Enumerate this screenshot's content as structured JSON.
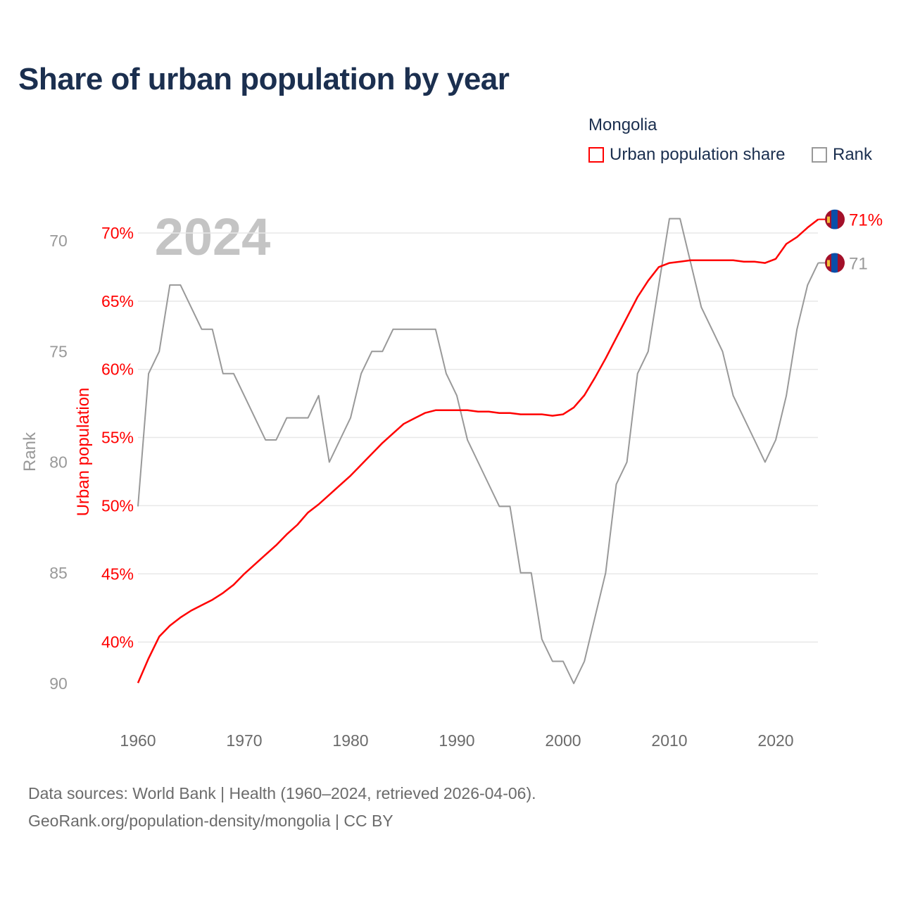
{
  "title": "Share of urban population by year",
  "legend": {
    "title": "Mongolia",
    "items": [
      {
        "label": "Urban population share",
        "color": "#ff0000"
      },
      {
        "label": "Rank",
        "color": "#999999"
      }
    ]
  },
  "footer": {
    "line1": "Data sources: World Bank | Health (1960–2024, retrieved 2026-04-06).",
    "line2": "GeoRank.org/population-density/mongolia | CC BY"
  },
  "chart_data": {
    "type": "line",
    "title": "Share of urban population by year",
    "year_watermark": "2024",
    "xlabel": "",
    "x_ticks": [
      "1960",
      "1970",
      "1980",
      "1990",
      "2000",
      "2010",
      "2020"
    ],
    "xlim": [
      1960,
      2024
    ],
    "y_left": {
      "label": "Urban population",
      "ticks": [
        "40%",
        "45%",
        "50%",
        "55%",
        "60%",
        "65%",
        "70%"
      ],
      "tick_values": [
        40,
        45,
        50,
        55,
        60,
        65,
        70
      ],
      "color": "#ff0000"
    },
    "y_rank": {
      "label": "Rank",
      "ticks": [
        "70",
        "75",
        "80",
        "85",
        "90"
      ],
      "tick_values": [
        70,
        75,
        80,
        85,
        90
      ],
      "inverted": true,
      "color": "#999999"
    },
    "grid": true,
    "legend_position": "top-right",
    "x": [
      1960,
      1961,
      1962,
      1963,
      1964,
      1965,
      1966,
      1967,
      1968,
      1969,
      1970,
      1971,
      1972,
      1973,
      1974,
      1975,
      1976,
      1977,
      1978,
      1979,
      1980,
      1981,
      1982,
      1983,
      1984,
      1985,
      1986,
      1987,
      1988,
      1989,
      1990,
      1991,
      1992,
      1993,
      1994,
      1995,
      1996,
      1997,
      1998,
      1999,
      2000,
      2001,
      2002,
      2003,
      2004,
      2005,
      2006,
      2007,
      2008,
      2009,
      2010,
      2011,
      2012,
      2013,
      2014,
      2015,
      2016,
      2017,
      2018,
      2019,
      2020,
      2021,
      2022,
      2023,
      2024
    ],
    "series": [
      {
        "name": "Urban population share",
        "axis": "left",
        "values": [
          37.0,
          38.8,
          40.4,
          41.2,
          41.8,
          42.3,
          42.7,
          43.1,
          43.6,
          44.2,
          45.0,
          45.7,
          46.4,
          47.1,
          47.9,
          48.6,
          49.5,
          50.1,
          50.8,
          51.5,
          52.2,
          53.0,
          53.8,
          54.6,
          55.3,
          56.0,
          56.4,
          56.8,
          57.0,
          57.0,
          57.0,
          57.0,
          56.9,
          56.9,
          56.8,
          56.8,
          56.7,
          56.7,
          56.7,
          56.6,
          56.7,
          57.2,
          58.1,
          59.4,
          60.8,
          62.3,
          63.8,
          65.3,
          66.5,
          67.5,
          67.8,
          67.9,
          68.0,
          68.0,
          68.0,
          68.0,
          68.0,
          67.9,
          67.9,
          67.8,
          68.1,
          69.2,
          69.7,
          70.4,
          71.0
        ],
        "end_label": "71%"
      },
      {
        "name": "Rank",
        "axis": "rank",
        "values": [
          82,
          76,
          75,
          72,
          72,
          73,
          74,
          74,
          76,
          76,
          77,
          78,
          79,
          79,
          78,
          78,
          78,
          77,
          80,
          79,
          78,
          76,
          75,
          75,
          74,
          74,
          74,
          74,
          74,
          76,
          77,
          79,
          80,
          81,
          82,
          82,
          85,
          85,
          88,
          89,
          89,
          90,
          89,
          87,
          85,
          81,
          80,
          76,
          75,
          72,
          69,
          69,
          71,
          73,
          74,
          75,
          77,
          78,
          79,
          80,
          79,
          77,
          74,
          72,
          71
        ],
        "end_label": "71"
      }
    ]
  }
}
